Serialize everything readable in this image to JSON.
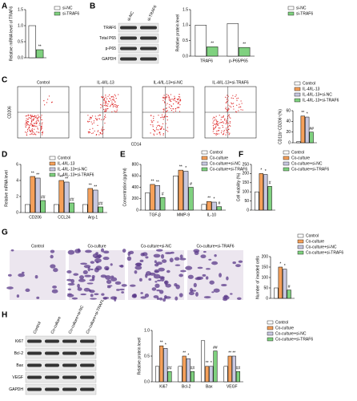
{
  "figure": {
    "panel_labels": [
      "A",
      "B",
      "C",
      "D",
      "E",
      "F",
      "G",
      "H"
    ],
    "blot_b": {
      "columns": [
        "si-NC",
        "si-TRAF6"
      ],
      "rows": [
        "TRAF6",
        "Total P65",
        "p-P65",
        "GAPDH"
      ]
    },
    "flow_c": {
      "titles": [
        "Control",
        "IL-4/IL-13",
        "IL-4/IL-13+si-NC",
        "IL-4/IL-13+si-TRAF6"
      ],
      "y_label": "CD206",
      "x_label": "CD14"
    },
    "images_g": {
      "titles": [
        "Control",
        "Co-culture",
        "Co-culture+si-NC",
        "Co-culture+si-TRAF6"
      ]
    },
    "blot_h": {
      "columns": [
        "Control",
        "Co-culture",
        "Co-culture+si-NC",
        "Co-culture+si-TRAF6"
      ],
      "rows": [
        "Ki67",
        "Bcl-2",
        "Bax",
        "VEGF",
        "GAPDH"
      ]
    }
  },
  "chart_data": [
    {
      "type": "bar",
      "y_label": "Relative mRNA level of TRAF6",
      "categories": [
        null
      ],
      "ylim": [
        0,
        1.5
      ],
      "yticks": [
        {
          "value": 0,
          "label": "0.0"
        },
        {
          "value": 0.5,
          "label": "0.5"
        },
        {
          "value": 1,
          "label": "1.0"
        },
        {
          "value": 1.5,
          "label": "1.5"
        }
      ],
      "series": [
        {
          "name": "si-NC",
          "color": "#ffffff",
          "values": [
            1.0
          ],
          "annotations": [
            null
          ]
        },
        {
          "name": "si-TRAF6",
          "color": "#7fd17f",
          "values": [
            0.25
          ],
          "annotations": [
            "**"
          ]
        }
      ]
    },
    {
      "type": "bar",
      "y_label": "Relative protein level",
      "categories": [
        "TRAF6",
        "p-P65/P65"
      ],
      "ylim": [
        0,
        1.5
      ],
      "yticks": [
        {
          "value": 0,
          "label": "0.0"
        },
        {
          "value": 0.5,
          "label": "0.5"
        },
        {
          "value": 1,
          "label": "1.0"
        },
        {
          "value": 1.5,
          "label": "1.5"
        }
      ],
      "series": [
        {
          "name": "si-NC",
          "color": "#ffffff",
          "values": [
            1.0,
            1.05
          ],
          "annotations": [
            null,
            null
          ]
        },
        {
          "name": "si-TRAF6",
          "color": "#7fd17f",
          "values": [
            0.3,
            0.28
          ],
          "annotations": [
            "**",
            "**"
          ]
        }
      ]
    },
    {
      "type": "bar",
      "y_label": "CD11b⁺CD206⁺(%)",
      "categories": [
        null
      ],
      "ylim": [
        0,
        60
      ],
      "yticks": [
        0,
        20,
        40,
        60
      ],
      "series": [
        {
          "name": "Control",
          "color": "#ffffff",
          "values": [
            2
          ],
          "annotations": [
            null
          ]
        },
        {
          "name": "IL-4/IL-13",
          "color": "#f5a05a",
          "values": [
            50
          ],
          "annotations": [
            "**"
          ]
        },
        {
          "name": "IL-4/IL-13+si-NC",
          "color": "#c8c8e0",
          "values": [
            48
          ],
          "annotations": [
            "*"
          ]
        },
        {
          "name": "IL-4/IL-13+si-TRAF6",
          "color": "#7fd17f",
          "values": [
            20
          ],
          "annotations": [
            "##"
          ]
        }
      ]
    },
    {
      "type": "bar",
      "y_label": "Relative mRNA level",
      "categories": [
        "CD206",
        "CCL24",
        "Arg-1"
      ],
      "ylim": [
        0,
        6
      ],
      "yticks": [
        0,
        2,
        4,
        6
      ],
      "series": [
        {
          "name": "Control",
          "color": "#ffffff",
          "values": [
            1,
            1,
            1
          ],
          "annotations": [
            null,
            null,
            null
          ]
        },
        {
          "name": "IL-4/IL-13",
          "color": "#f5a05a",
          "values": [
            4.5,
            4,
            3
          ],
          "annotations": [
            "**",
            "**",
            "**"
          ]
        },
        {
          "name": "IL-4/IL-13+si-NC",
          "color": "#c8c8e0",
          "values": [
            4.3,
            3.8,
            2.8
          ],
          "annotations": [
            "**",
            "**",
            "**"
          ]
        },
        {
          "name": "IL-4/IL-13+si-TRAF6",
          "color": "#7fd17f",
          "values": [
            1.5,
            1.2,
            0.7
          ],
          "annotations": [
            "##",
            "##",
            "##"
          ]
        }
      ]
    },
    {
      "type": "bar",
      "y_label": "Concentration (pg/ml)",
      "categories": [
        "TGF-β",
        "MMP-9",
        "IL-10"
      ],
      "ylim": [
        0,
        800
      ],
      "yticks": [
        0,
        200,
        400,
        600,
        800
      ],
      "series": [
        {
          "name": "Control",
          "color": "#ffffff",
          "values": [
            300,
            600,
            100
          ],
          "annotations": [
            null,
            null,
            null
          ]
        },
        {
          "name": "Co-culture",
          "color": "#f5a05a",
          "values": [
            450,
            700,
            150
          ],
          "annotations": [
            "**",
            "**",
            "**"
          ]
        },
        {
          "name": "Co-culture+si-NC",
          "color": "#c8c8e0",
          "values": [
            430,
            680,
            140
          ],
          "annotations": [
            "**",
            "*",
            "*"
          ]
        },
        {
          "name": "Co-culture+si-TRAF6",
          "color": "#7fd17f",
          "values": [
            220,
            400,
            60
          ],
          "annotations": [
            "#",
            "#",
            "#"
          ]
        }
      ]
    },
    {
      "type": "bar",
      "y_label": "Cell viability (%)",
      "categories": [
        null
      ],
      "ylim": [
        0,
        250
      ],
      "yticks": [
        0,
        50,
        100,
        150,
        200,
        250
      ],
      "series": [
        {
          "name": "Control",
          "color": "#ffffff",
          "values": [
            100
          ],
          "annotations": [
            null
          ]
        },
        {
          "name": "Co-culture",
          "color": "#f5a05a",
          "values": [
            200
          ],
          "annotations": [
            "*"
          ]
        },
        {
          "name": "Co-culture+si-NC",
          "color": "#c8c8e0",
          "values": [
            195
          ],
          "annotations": [
            "*"
          ]
        },
        {
          "name": "Co-culture+si-TRAF6",
          "color": "#7fd17f",
          "values": [
            130
          ],
          "annotations": [
            "#"
          ]
        }
      ]
    },
    {
      "type": "bar",
      "y_label": "Number of invaded cells",
      "categories": [
        null
      ],
      "ylim": [
        0,
        200
      ],
      "yticks": [
        0,
        50,
        100,
        150,
        200
      ],
      "series": [
        {
          "name": "Control",
          "color": "#ffffff",
          "values": [
            50
          ],
          "annotations": [
            null
          ]
        },
        {
          "name": "Co-culture",
          "color": "#f5a05a",
          "values": [
            150
          ],
          "annotations": [
            "*"
          ]
        },
        {
          "name": "Co-culture+si-NC",
          "color": "#c8c8e0",
          "values": [
            140
          ],
          "annotations": [
            "*"
          ]
        },
        {
          "name": "Co-culture+si-TRAF6",
          "color": "#7fd17f",
          "values": [
            40
          ],
          "annotations": [
            "#"
          ]
        }
      ]
    },
    {
      "type": "bar",
      "y_label": "Relative protein level",
      "categories": [
        "Ki67",
        "Bcl-2",
        "Bax",
        "VEGF"
      ],
      "ylim": [
        0,
        1
      ],
      "yticks": [
        {
          "value": 0,
          "label": "0.0"
        },
        {
          "value": 0.5,
          "label": "0.5"
        },
        {
          "value": 1,
          "label": "1.0"
        }
      ],
      "series": [
        {
          "name": "Control",
          "color": "#ffffff",
          "values": [
            0.3,
            0.3,
            0.8,
            0.3
          ],
          "annotations": [
            null,
            null,
            null,
            null
          ]
        },
        {
          "name": "Co-culture",
          "color": "#f5a05a",
          "values": [
            0.7,
            0.5,
            0.3,
            0.5
          ],
          "annotations": [
            "**",
            "**",
            "**",
            "**"
          ]
        },
        {
          "name": "Co-culture+si-NC",
          "color": "#c8c8e0",
          "values": [
            0.65,
            0.45,
            0.3,
            0.5
          ],
          "annotations": [
            "*",
            "*",
            "*",
            "**"
          ]
        },
        {
          "name": "Co-culture+si-TRAF6",
          "color": "#7fd17f",
          "values": [
            0.2,
            0.2,
            0.6,
            0.2
          ],
          "annotations": [
            "##",
            "##",
            "##",
            "##"
          ]
        }
      ]
    }
  ]
}
